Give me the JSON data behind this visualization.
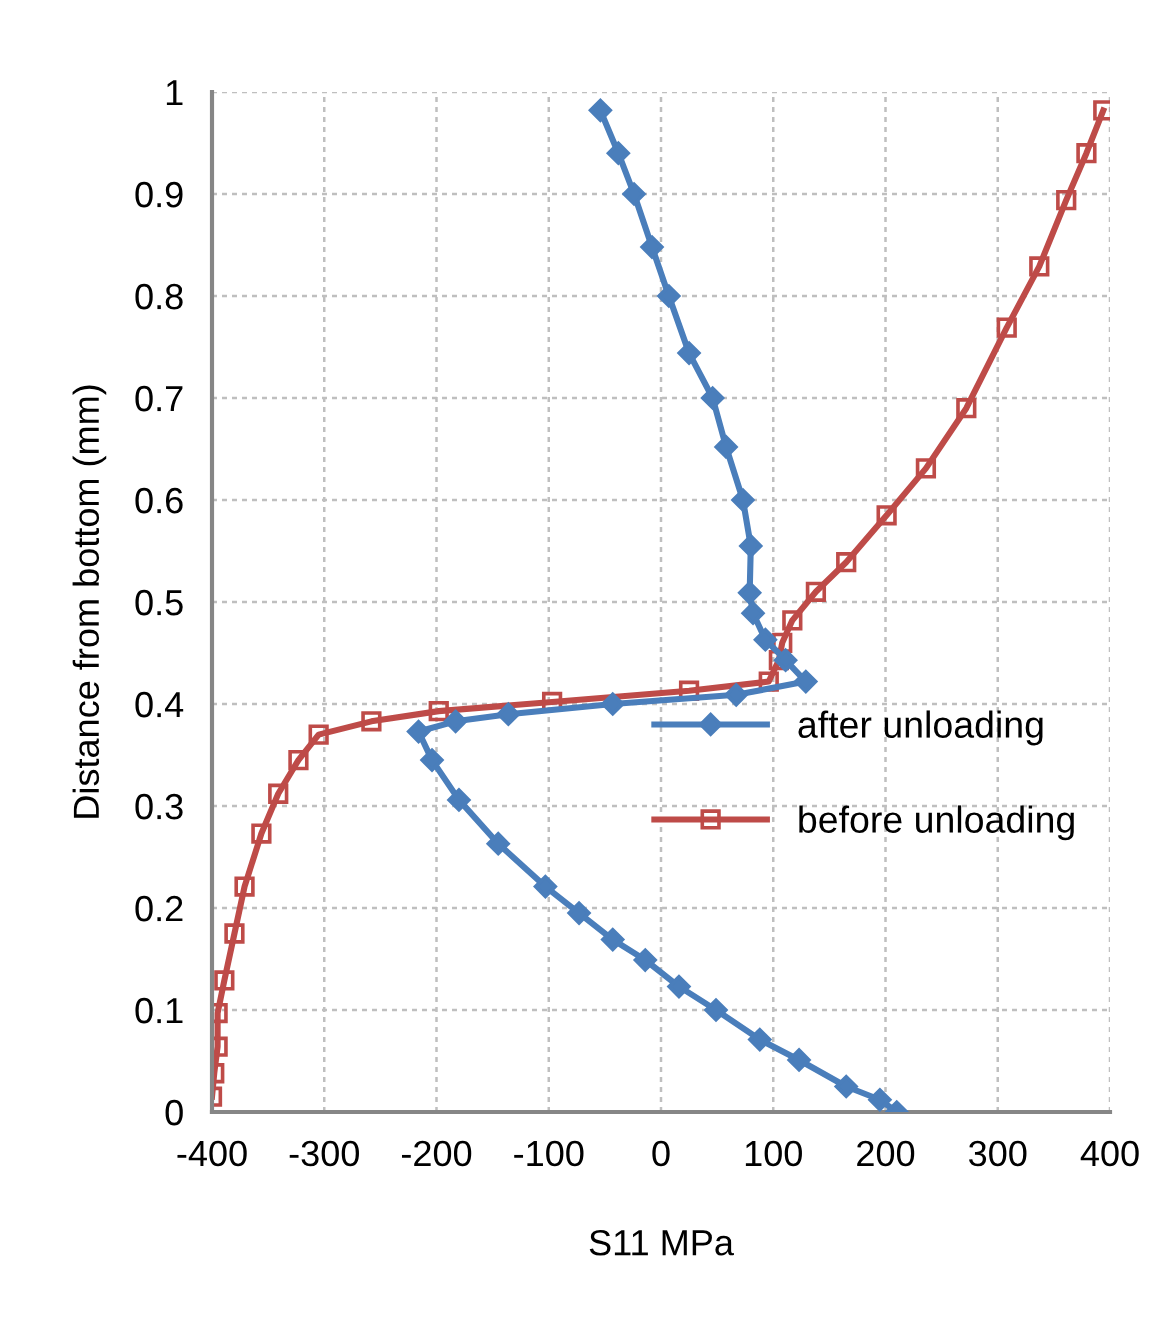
{
  "chart_data": {
    "type": "line",
    "xlabel": "S11 MPa",
    "ylabel": "Distance from bottom (mm)",
    "xlim": [
      -400,
      400
    ],
    "xticks": [
      -400,
      -300,
      -200,
      -100,
      0,
      100,
      200,
      300,
      400
    ],
    "ylim": [
      0,
      1
    ],
    "yticks": [
      0,
      0.1,
      0.2,
      0.3,
      0.4,
      0.5,
      0.6,
      0.7,
      0.8,
      0.9,
      1
    ],
    "grid": true,
    "legend": "right",
    "series": [
      {
        "name": "after unloading",
        "color": "#4a7ebb",
        "marker": "diamond",
        "x": [
          -54,
          -38,
          -24,
          -8,
          7,
          25,
          46,
          58,
          73,
          80,
          79,
          82,
          93,
          111,
          129,
          67,
          -43,
          -136,
          -183,
          -216,
          -204,
          -180,
          -145,
          -103,
          -73,
          -43,
          -14,
          16,
          49,
          88,
          123,
          165,
          195,
          210
        ],
        "values": [
          0.982,
          0.94,
          0.9,
          0.848,
          0.8,
          0.744,
          0.7,
          0.652,
          0.6,
          0.555,
          0.509,
          0.489,
          0.463,
          0.443,
          0.422,
          0.409,
          0.4,
          0.39,
          0.383,
          0.373,
          0.345,
          0.306,
          0.263,
          0.221,
          0.195,
          0.169,
          0.149,
          0.123,
          0.1,
          0.071,
          0.051,
          0.025,
          0.012,
          0
        ]
      },
      {
        "name": "before unloading",
        "color": "#be4b48",
        "marker": "square",
        "x": [
          -400,
          -398,
          -395,
          -395,
          -389,
          -380,
          -371,
          -356,
          -341,
          -323,
          -305,
          -258,
          -198,
          -97,
          25,
          96,
          105,
          108,
          117,
          138,
          165,
          201,
          236,
          272,
          308,
          337,
          361,
          379,
          394
        ],
        "values": [
          0.015,
          0.038,
          0.064,
          0.097,
          0.129,
          0.175,
          0.221,
          0.273,
          0.312,
          0.345,
          0.37,
          0.383,
          0.393,
          0.402,
          0.413,
          0.422,
          0.443,
          0.46,
          0.482,
          0.51,
          0.539,
          0.585,
          0.631,
          0.69,
          0.769,
          0.829,
          0.894,
          0.94,
          0.982
        ]
      }
    ]
  }
}
